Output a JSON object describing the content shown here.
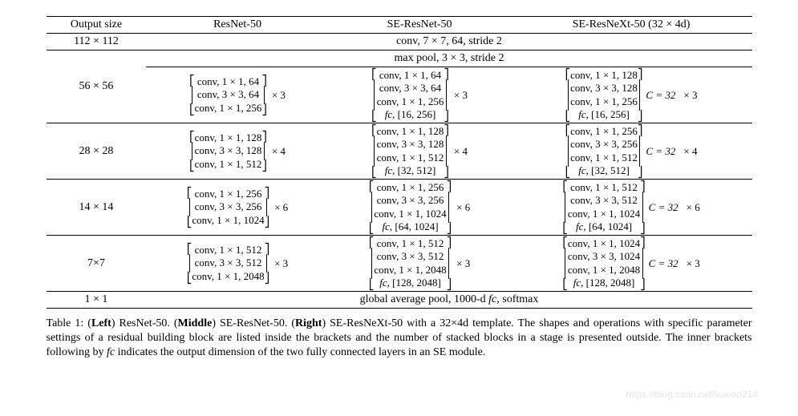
{
  "headers": {
    "c0": "Output size",
    "c1": "ResNet-50",
    "c2": "SE-ResNet-50",
    "c3": "SE-ResNeXt-50 (32 × 4d)"
  },
  "row_conv": {
    "size": "112 × 112",
    "text": "conv, 7 × 7, 64, stride 2"
  },
  "row_pool": {
    "size": "56 × 56",
    "text": "max pool, 3 × 3, stride 2"
  },
  "stages": [
    {
      "size": "",
      "resnet": {
        "lines": [
          "conv, 1 × 1, 64",
          "conv, 3 × 3, 64",
          "conv, 1 × 1, 256"
        ],
        "mult": "× 3"
      },
      "seresnet": {
        "lines": [
          "conv, 1 × 1, 64",
          "conv, 3 × 3, 64",
          "conv, 1 × 1, 256",
          "fc, [16, 256]"
        ],
        "mult": "× 3"
      },
      "seresnext": {
        "lines": [
          "conv, 1 × 1, 128",
          "conv, 3 × 3, 128",
          "conv, 1 × 1, 256",
          "fc, [16, 256]"
        ],
        "ann": "C = 32",
        "mult": "× 3"
      }
    },
    {
      "size": "28 × 28",
      "resnet": {
        "lines": [
          "conv, 1 × 1, 128",
          "conv, 3 × 3, 128",
          "conv, 1 × 1, 512"
        ],
        "mult": "× 4"
      },
      "seresnet": {
        "lines": [
          "conv, 1 × 1, 128",
          "conv, 3 × 3, 128",
          "conv, 1 × 1, 512",
          "fc, [32, 512]"
        ],
        "mult": "× 4"
      },
      "seresnext": {
        "lines": [
          "conv, 1 × 1, 256",
          "conv, 3 × 3, 256",
          "conv, 1 × 1, 512",
          "fc, [32, 512]"
        ],
        "ann": "C = 32",
        "mult": "× 4"
      }
    },
    {
      "size": "14 × 14",
      "resnet": {
        "lines": [
          "conv, 1 × 1, 256",
          "conv, 3 × 3, 256",
          "conv, 1 × 1, 1024"
        ],
        "mult": "× 6"
      },
      "seresnet": {
        "lines": [
          "conv, 1 × 1, 256",
          "conv, 3 × 3, 256",
          "conv, 1 × 1, 1024",
          "fc, [64, 1024]"
        ],
        "mult": "× 6"
      },
      "seresnext": {
        "lines": [
          "conv, 1 × 1, 512",
          "conv, 3 × 3, 512",
          "conv, 1 × 1, 1024",
          "fc, [64, 1024]"
        ],
        "ann": "C = 32",
        "mult": "× 6"
      }
    },
    {
      "size": "7×7",
      "resnet": {
        "lines": [
          "conv, 1 × 1, 512",
          "conv, 3 × 3, 512",
          "conv, 1 × 1, 2048"
        ],
        "mult": "× 3"
      },
      "seresnet": {
        "lines": [
          "conv, 1 × 1, 512",
          "conv, 3 × 3, 512",
          "conv, 1 × 1, 2048",
          "fc, [128, 2048]"
        ],
        "mult": "× 3"
      },
      "seresnext": {
        "lines": [
          "conv, 1 × 1, 1024",
          "conv, 3 × 3, 1024",
          "conv, 1 × 1, 2048",
          "fc, [128, 2048]"
        ],
        "ann": "C = 32",
        "mult": "× 3"
      }
    }
  ],
  "row_final": {
    "size": "1 × 1",
    "text": "global average pool, 1000-d fc, softmax"
  },
  "caption": "Table 1: (Left) ResNet-50. (Middle) SE-ResNet-50. (Right) SE-ResNeXt-50 with a 32×4d template. The shapes and operations with specific parameter settings of a residual building block are listed inside the brackets and the number of stacked blocks in a stage is presented outside. The inner brackets following by fc indicates the output dimension of the two fully connected layers in an SE module.",
  "watermark": "https://blog.csdn.net/liuxiao214",
  "style": {
    "font": "Times New Roman",
    "body_fontsize": 14,
    "cell_fontsize": 13,
    "text_color": "#000000",
    "border_color": "#000000",
    "background": "#ffffff",
    "watermark_color": "#cccccc"
  }
}
